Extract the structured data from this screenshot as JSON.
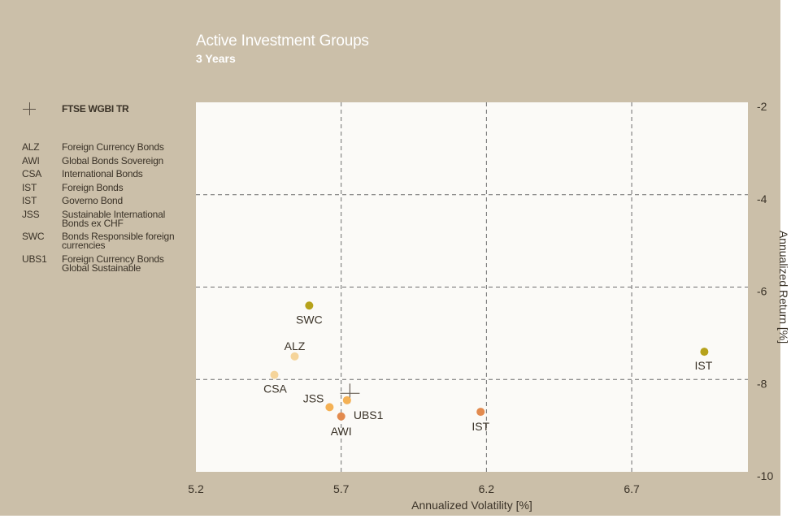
{
  "chart_data": {
    "type": "scatter",
    "title": "Active Investment Groups",
    "subtitle": "3 Years",
    "xlabel": "Annualized Volatility [%]",
    "ylabel": "Annualized Return [%]",
    "xlim": [
      5.2,
      7.1
    ],
    "ylim": [
      -10,
      -2
    ],
    "xticks": [
      "5.2",
      "5.7",
      "6.2",
      "6.7"
    ],
    "xtick_values": [
      5.2,
      5.7,
      6.2,
      6.7
    ],
    "yticks": [
      "-2",
      "-4",
      "-6",
      "-8",
      "-10"
    ],
    "ytick_values": [
      -2,
      -4,
      -6,
      -8,
      -10
    ],
    "grid": true,
    "y_axis_side": "right",
    "benchmark": {
      "name": "FTSE WGBI TR",
      "x": 5.73,
      "y": -8.3
    },
    "points": [
      {
        "label": "SWC",
        "x": 5.59,
        "y": -6.4,
        "color": "#b6a21b"
      },
      {
        "label": "ALZ",
        "x": 5.54,
        "y": -7.5,
        "color": "#f5d49a"
      },
      {
        "label": "CSA",
        "x": 5.47,
        "y": -7.9,
        "color": "#f5d49a"
      },
      {
        "label": "JSS",
        "x": 5.66,
        "y": -8.6,
        "color": "#f4b155"
      },
      {
        "label": "UBS1",
        "x": 5.72,
        "y": -8.45,
        "color": "#f4b155"
      },
      {
        "label": "AWI",
        "x": 5.7,
        "y": -8.8,
        "color": "#e28a4e"
      },
      {
        "label": "IST",
        "x": 6.18,
        "y": -8.7,
        "color": "#e28a4e"
      },
      {
        "label": "IST",
        "x": 6.95,
        "y": -7.4,
        "color": "#b6a21b"
      }
    ]
  },
  "legend": {
    "benchmark_label": "FTSE WGBI TR",
    "items": [
      {
        "code": "ALZ",
        "name": "Foreign Currency Bonds"
      },
      {
        "code": "AWI",
        "name": "Global Bonds Sovereign"
      },
      {
        "code": "CSA",
        "name": "International Bonds"
      },
      {
        "code": "IST",
        "name": "Foreign Bonds"
      },
      {
        "code": "IST",
        "name": "Governo Bond"
      },
      {
        "code": "JSS",
        "name": "Sustainable International Bonds ex CHF"
      },
      {
        "code": "SWC",
        "name": "Bonds Responsible foreign currencies"
      },
      {
        "code": "UBS1",
        "name": "Foreign Currency Bonds Global Sustainable"
      }
    ]
  },
  "colors": {
    "background": "#cbbfa9",
    "plot_area": "#fbfaf7",
    "grid": "#6e6e6e"
  }
}
